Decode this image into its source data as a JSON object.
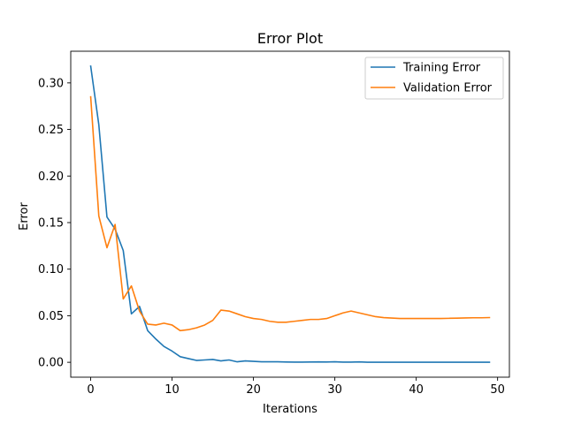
{
  "chart_data": {
    "type": "line",
    "title": "Error Plot",
    "xlabel": "Iterations",
    "ylabel": "Error",
    "xlim": [
      -2.45,
      51.45
    ],
    "ylim": [
      -0.016,
      0.334
    ],
    "xticks": [
      0,
      10,
      20,
      30,
      40,
      50
    ],
    "yticks": [
      0.0,
      0.05,
      0.1,
      0.15,
      0.2,
      0.25,
      0.3
    ],
    "ytick_labels": [
      "0.00",
      "0.05",
      "0.10",
      "0.15",
      "0.20",
      "0.25",
      "0.30"
    ],
    "xtick_labels": [
      "0",
      "10",
      "20",
      "30",
      "40",
      "50"
    ],
    "grid": false,
    "legend_position": "top-right",
    "x": [
      0,
      1,
      2,
      3,
      4,
      5,
      6,
      7,
      8,
      9,
      10,
      11,
      12,
      13,
      14,
      15,
      16,
      17,
      18,
      19,
      20,
      21,
      22,
      23,
      24,
      25,
      26,
      27,
      28,
      29,
      30,
      31,
      32,
      33,
      34,
      35,
      36,
      37,
      38,
      39,
      40,
      41,
      42,
      43,
      44,
      45,
      46,
      47,
      48,
      49
    ],
    "series": [
      {
        "name": "Training Error",
        "color": "#1f77b4",
        "values": [
          0.318,
          0.255,
          0.156,
          0.143,
          0.12,
          0.052,
          0.06,
          0.034,
          0.025,
          0.017,
          0.012,
          0.006,
          0.004,
          0.002,
          0.0025,
          0.003,
          0.0015,
          0.0025,
          0.0005,
          0.0015,
          0.001,
          0.0005,
          0.0005,
          0.0005,
          0.0003,
          0.0002,
          0.0002,
          0.0003,
          0.0004,
          0.0003,
          0.0005,
          0.0002,
          0.0002,
          0.0004,
          0.0001,
          0.0001,
          0.0001,
          0.0001,
          0.0001,
          0.0001,
          0.0001,
          0.0001,
          0.0001,
          0.0001,
          0.0001,
          0.0001,
          0.0001,
          0.0001,
          0.0001,
          0.0001
        ]
      },
      {
        "name": "Validation Error",
        "color": "#ff7f0e",
        "values": [
          0.285,
          0.157,
          0.123,
          0.148,
          0.068,
          0.082,
          0.055,
          0.041,
          0.04,
          0.042,
          0.04,
          0.034,
          0.035,
          0.037,
          0.04,
          0.045,
          0.056,
          0.055,
          0.052,
          0.049,
          0.047,
          0.046,
          0.044,
          0.043,
          0.043,
          0.044,
          0.045,
          0.046,
          0.046,
          0.047,
          0.05,
          0.053,
          0.055,
          0.053,
          0.051,
          0.049,
          0.048,
          0.0475,
          0.047,
          0.047,
          0.047,
          0.047,
          0.047,
          0.047,
          0.0472,
          0.0474,
          0.0476,
          0.0478,
          0.0478,
          0.048
        ]
      }
    ]
  }
}
